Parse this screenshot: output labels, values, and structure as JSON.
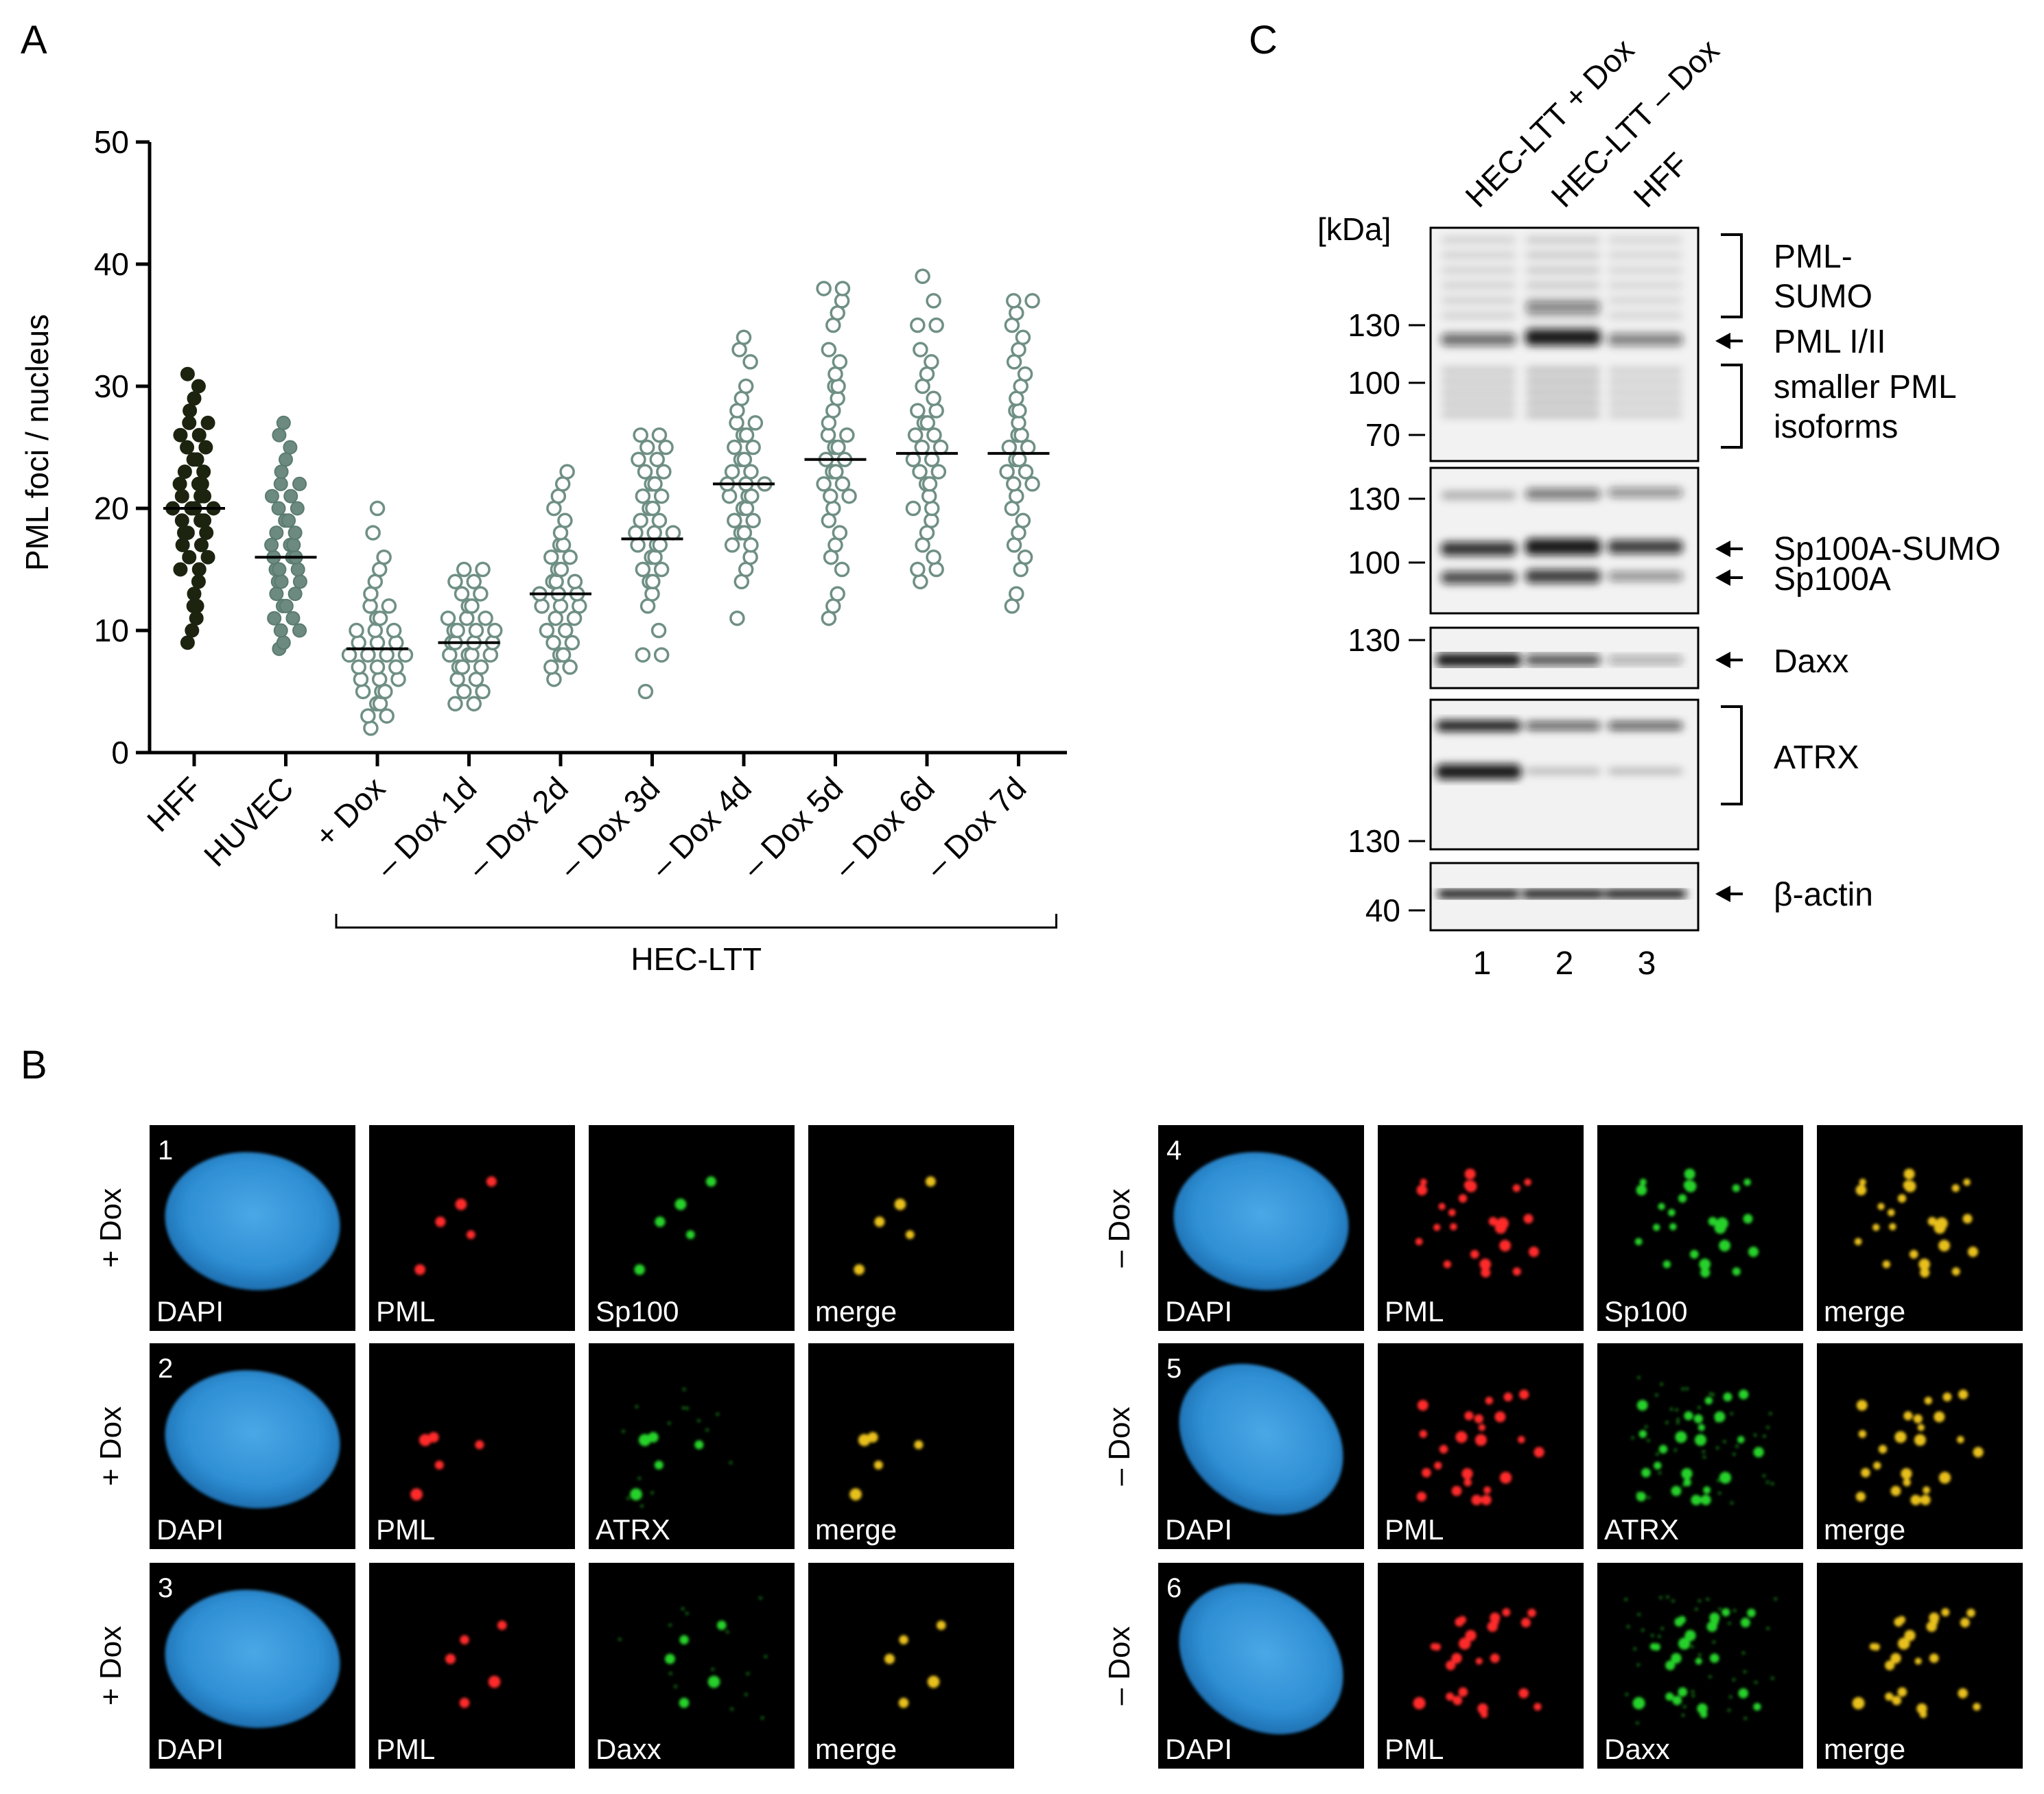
{
  "panels": {
    "A": "A",
    "B": "B",
    "C": "C"
  },
  "chart_data": {
    "type": "scatter",
    "ylabel": "PML foci / nucleus",
    "ylim": [
      0,
      50
    ],
    "yticks": [
      "0",
      "10",
      "20",
      "30",
      "40",
      "50"
    ],
    "categories": [
      "HFF",
      "HUVEC",
      "+ Dox",
      "– Dox 1d",
      "– Dox 2d",
      "– Dox 3d",
      "– Dox 4d",
      "– Dox 5d",
      "– Dox 6d",
      "– Dox 7d"
    ],
    "group_bracket": {
      "label": "HEC-LTT",
      "from_category": 2,
      "to_category": 9
    },
    "series": [
      {
        "category": "HFF",
        "style": "filled-dark",
        "mean": 20,
        "min": 9,
        "max": 31,
        "values": [
          9,
          10,
          11,
          12,
          12,
          13,
          14,
          15,
          15,
          16,
          16,
          17,
          17,
          18,
          18,
          18,
          19,
          19,
          19,
          20,
          20,
          20,
          20,
          21,
          21,
          21,
          22,
          22,
          22,
          23,
          23,
          24,
          24,
          25,
          25,
          26,
          26,
          27,
          27,
          28,
          29,
          30,
          31
        ]
      },
      {
        "category": "HUVEC",
        "style": "filled-grey",
        "mean": 16,
        "min": 8.5,
        "max": 27,
        "values": [
          8.5,
          9,
          10,
          10,
          11,
          11,
          12,
          12,
          13,
          13,
          14,
          14,
          14,
          15,
          15,
          15,
          16,
          16,
          16,
          17,
          17,
          17,
          18,
          18,
          19,
          19,
          20,
          20,
          21,
          21,
          22,
          22,
          23,
          24,
          25,
          26,
          27
        ]
      },
      {
        "category": "+ Dox",
        "style": "open",
        "mean": 8.5,
        "min": 2,
        "max": 20,
        "values": [
          2,
          3,
          3,
          4,
          4,
          5,
          5,
          5,
          6,
          6,
          6,
          7,
          7,
          7,
          8,
          8,
          8,
          8,
          9,
          9,
          9,
          10,
          10,
          10,
          11,
          11,
          12,
          12,
          13,
          14,
          15,
          16,
          18,
          20
        ]
      },
      {
        "category": "– Dox 1d",
        "style": "open",
        "mean": 9,
        "min": 4,
        "max": 15,
        "values": [
          4,
          4,
          5,
          5,
          6,
          6,
          7,
          7,
          7,
          8,
          8,
          8,
          8,
          9,
          9,
          9,
          9,
          10,
          10,
          10,
          10,
          11,
          11,
          11,
          12,
          12,
          13,
          13,
          14,
          14,
          15,
          15
        ]
      },
      {
        "category": "– Dox 2d",
        "style": "open",
        "mean": 13,
        "min": 6,
        "max": 23,
        "values": [
          6,
          7,
          7,
          8,
          8,
          9,
          9,
          10,
          10,
          11,
          11,
          12,
          12,
          12,
          13,
          13,
          13,
          14,
          14,
          14,
          15,
          15,
          16,
          16,
          17,
          17,
          18,
          19,
          20,
          21,
          22,
          23
        ]
      },
      {
        "category": "– Dox 3d",
        "style": "open",
        "mean": 17.5,
        "min": 5,
        "max": 26,
        "values": [
          5,
          8,
          8,
          10,
          12,
          13,
          14,
          14,
          15,
          15,
          16,
          16,
          17,
          17,
          17,
          18,
          18,
          18,
          19,
          19,
          20,
          20,
          21,
          21,
          22,
          22,
          23,
          23,
          24,
          24,
          25,
          25,
          26,
          26
        ]
      },
      {
        "category": "– Dox 4d",
        "style": "open",
        "mean": 22,
        "min": 11,
        "max": 34,
        "values": [
          11,
          14,
          15,
          16,
          17,
          17,
          18,
          18,
          19,
          19,
          20,
          20,
          21,
          21,
          21,
          22,
          22,
          22,
          23,
          23,
          24,
          24,
          25,
          25,
          26,
          26,
          27,
          27,
          28,
          29,
          30,
          32,
          33,
          34
        ]
      },
      {
        "category": "– Dox 5d",
        "style": "open",
        "mean": 24,
        "min": 11,
        "max": 38,
        "values": [
          11,
          12,
          13,
          15,
          16,
          17,
          18,
          19,
          20,
          21,
          21,
          22,
          22,
          23,
          23,
          24,
          24,
          25,
          25,
          26,
          26,
          27,
          28,
          29,
          30,
          30,
          31,
          32,
          33,
          35,
          36,
          37,
          38,
          38
        ]
      },
      {
        "category": "– Dox 6d",
        "style": "open",
        "mean": 24.5,
        "min": 14,
        "max": 39,
        "values": [
          14,
          15,
          15,
          16,
          17,
          18,
          19,
          20,
          20,
          21,
          22,
          22,
          23,
          23,
          24,
          24,
          25,
          25,
          26,
          26,
          27,
          27,
          28,
          28,
          29,
          30,
          31,
          32,
          33,
          35,
          35,
          37,
          39
        ]
      },
      {
        "category": "– Dox 7d",
        "style": "open",
        "mean": 24.5,
        "min": 12,
        "max": 37,
        "values": [
          12,
          13,
          15,
          16,
          17,
          18,
          19,
          20,
          21,
          22,
          22,
          23,
          23,
          24,
          24,
          25,
          25,
          26,
          26,
          27,
          28,
          28,
          29,
          30,
          31,
          32,
          33,
          34,
          35,
          36,
          37,
          37
        ]
      }
    ]
  },
  "blot": {
    "unit_label": "[kDa]",
    "lanes": [
      "HEC-LTT + Dox",
      "HEC-LTT – Dox",
      "HFF"
    ],
    "lane_numbers": [
      "1",
      "2",
      "3"
    ],
    "panels": [
      {
        "markers": [
          "130",
          "100",
          "70"
        ],
        "annotations": [
          {
            "text": [
              "PML-",
              "SUMO"
            ],
            "kind": "bracket"
          },
          {
            "text": [
              "PML I/II"
            ],
            "kind": "arrow"
          },
          {
            "text": [
              "smaller PML",
              "isoforms"
            ],
            "kind": "bracket"
          }
        ]
      },
      {
        "markers": [
          "130",
          "100"
        ],
        "annotations": [
          {
            "text": [
              "Sp100A-SUMO"
            ],
            "kind": "arrow"
          },
          {
            "text": [
              "Sp100A"
            ],
            "kind": "arrow"
          }
        ]
      },
      {
        "markers": [
          "130"
        ],
        "annotations": [
          {
            "text": [
              "Daxx"
            ],
            "kind": "arrow"
          }
        ]
      },
      {
        "markers": [
          "130"
        ],
        "annotations": [
          {
            "text": [
              "ATRX"
            ],
            "kind": "bracket"
          }
        ]
      },
      {
        "markers": [
          "40"
        ],
        "annotations": [
          {
            "text": [
              "β-actin"
            ],
            "kind": "arrow"
          }
        ]
      }
    ]
  },
  "microscopy": {
    "groups": [
      {
        "condition": "+ Dox",
        "rows": [
          {
            "number": "1",
            "channels": [
              "DAPI",
              "PML",
              "Sp100",
              "merge"
            ]
          },
          {
            "number": "2",
            "channels": [
              "DAPI",
              "PML",
              "ATRX",
              "merge"
            ]
          },
          {
            "number": "3",
            "channels": [
              "DAPI",
              "PML",
              "Daxx",
              "merge"
            ]
          }
        ]
      },
      {
        "condition": "– Dox",
        "rows": [
          {
            "number": "4",
            "channels": [
              "DAPI",
              "PML",
              "Sp100",
              "merge"
            ]
          },
          {
            "number": "5",
            "channels": [
              "DAPI",
              "PML",
              "ATRX",
              "merge"
            ]
          },
          {
            "number": "6",
            "channels": [
              "DAPI",
              "PML",
              "Daxx",
              "merge"
            ]
          }
        ]
      }
    ],
    "colors": {
      "dapi": "#3a9ad9",
      "pml": "#ff2a2a",
      "green": "#28d22a",
      "merge": "#e8c01a"
    }
  }
}
